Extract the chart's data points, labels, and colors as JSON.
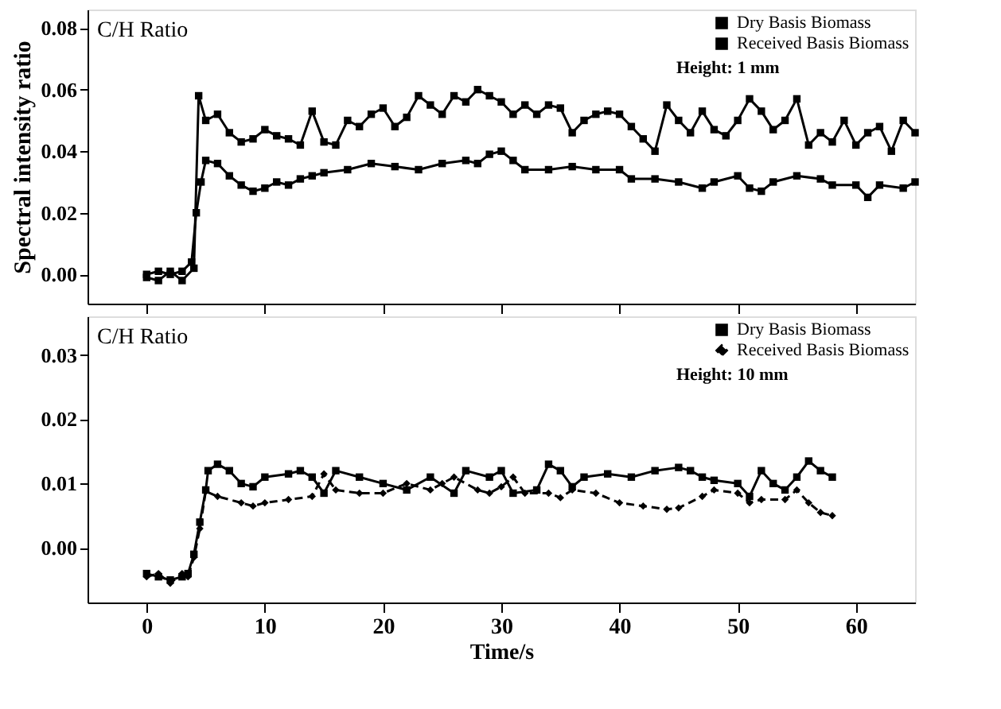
{
  "chart_data": [
    {
      "type": "line",
      "title": "C/H Ratio",
      "ylabel": "Spectral intensity ratio",
      "annotations": [
        "Height: 1 mm"
      ],
      "xlim": [
        -5,
        65
      ],
      "xticks": [
        0,
        10,
        20,
        30,
        40,
        50,
        60
      ],
      "ylim": [
        -0.0095,
        0.086
      ],
      "yticks": [
        {
          "value": 0,
          "label": "0.00"
        },
        0.02,
        0.04,
        0.06,
        0.08
      ],
      "tick_labels": "y",
      "legend": "top right",
      "grid": false,
      "series": [
        {
          "name": "Dry Basis Biomass",
          "color": "#000000",
          "marker": "square",
          "line_style": "solid",
          "x": [
            0,
            1,
            2,
            3,
            3.8,
            4.2,
            4.6,
            5,
            6,
            7,
            8,
            9,
            10,
            11,
            12,
            13,
            14,
            15,
            17,
            19,
            21,
            23,
            25,
            27,
            28,
            29,
            30,
            31,
            32,
            34,
            36,
            38,
            40,
            41,
            43,
            45,
            47,
            48,
            50,
            51,
            52,
            53,
            55,
            57,
            58,
            60,
            61,
            62,
            64,
            65
          ],
          "values": [
            0.0,
            0.001,
            0.0,
            0.001,
            0.004,
            0.02,
            0.03,
            0.037,
            0.036,
            0.032,
            0.029,
            0.027,
            0.028,
            0.03,
            0.029,
            0.031,
            0.032,
            0.033,
            0.034,
            0.036,
            0.035,
            0.034,
            0.036,
            0.037,
            0.036,
            0.039,
            0.04,
            0.037,
            0.034,
            0.034,
            0.035,
            0.034,
            0.034,
            0.031,
            0.031,
            0.03,
            0.028,
            0.03,
            0.032,
            0.028,
            0.027,
            0.03,
            0.032,
            0.031,
            0.029,
            0.029,
            0.025,
            0.029,
            0.028,
            0.03
          ]
        },
        {
          "name": "Received Basis Biomass",
          "color": "#000000",
          "marker": "square",
          "line_style": "solid",
          "x": [
            0,
            1,
            2,
            3,
            4,
            4.4,
            5,
            6,
            7,
            8,
            9,
            10,
            11,
            12,
            13,
            14,
            15,
            16,
            17,
            18,
            19,
            20,
            21,
            22,
            23,
            24,
            25,
            26,
            27,
            28,
            29,
            30,
            31,
            32,
            33,
            34,
            35,
            36,
            37,
            38,
            39,
            40,
            41,
            42,
            43,
            44,
            45,
            46,
            47,
            48,
            49,
            50,
            51,
            52,
            53,
            54,
            55,
            56,
            57,
            58,
            59,
            60,
            61,
            62,
            63,
            64,
            65
          ],
          "values": [
            -0.001,
            -0.002,
            0.001,
            -0.002,
            0.002,
            0.058,
            0.05,
            0.052,
            0.046,
            0.043,
            0.044,
            0.047,
            0.045,
            0.044,
            0.042,
            0.053,
            0.043,
            0.042,
            0.05,
            0.048,
            0.052,
            0.054,
            0.048,
            0.051,
            0.058,
            0.055,
            0.052,
            0.058,
            0.056,
            0.06,
            0.058,
            0.056,
            0.052,
            0.055,
            0.052,
            0.055,
            0.054,
            0.046,
            0.05,
            0.052,
            0.053,
            0.052,
            0.048,
            0.044,
            0.04,
            0.055,
            0.05,
            0.046,
            0.053,
            0.047,
            0.045,
            0.05,
            0.057,
            0.053,
            0.047,
            0.05,
            0.057,
            0.042,
            0.046,
            0.043,
            0.05,
            0.042,
            0.046,
            0.048,
            0.04,
            0.05,
            0.046
          ]
        }
      ]
    },
    {
      "type": "line",
      "title": "C/H Ratio",
      "xlabel": "Time/s",
      "annotations": [
        "Height: 10 mm"
      ],
      "xlim": [
        -5,
        65
      ],
      "xticks": [
        0,
        10,
        20,
        30,
        40,
        50,
        60
      ],
      "ylim": [
        -0.0085,
        0.036
      ],
      "yticks": [
        {
          "value": 0,
          "label": "0.00"
        },
        0.01,
        0.02,
        0.03
      ],
      "legend": "top right",
      "grid": false,
      "series": [
        {
          "name": "Dry Basis Biomass",
          "color": "#000000",
          "marker": "square",
          "line_style": "solid",
          "x": [
            0,
            1,
            2,
            3,
            3.5,
            4,
            4.5,
            5,
            5.2,
            6,
            7,
            8,
            9,
            10,
            12,
            13,
            14,
            15,
            16,
            18,
            20,
            22,
            24,
            26,
            27,
            29,
            30,
            31,
            33,
            34,
            35,
            36,
            37,
            39,
            41,
            43,
            45,
            46,
            47,
            48,
            50,
            51,
            52,
            53,
            54,
            55,
            56,
            57,
            58
          ],
          "values": [
            -0.004,
            -0.0045,
            -0.005,
            -0.0045,
            -0.004,
            -0.001,
            0.004,
            0.009,
            0.012,
            0.013,
            0.012,
            0.01,
            0.0095,
            0.011,
            0.0115,
            0.012,
            0.011,
            0.0085,
            0.012,
            0.011,
            0.01,
            0.009,
            0.011,
            0.0085,
            0.012,
            0.011,
            0.012,
            0.0085,
            0.009,
            0.013,
            0.012,
            0.0095,
            0.011,
            0.0115,
            0.011,
            0.012,
            0.0125,
            0.012,
            0.011,
            0.0105,
            0.01,
            0.008,
            0.012,
            0.01,
            0.009,
            0.011,
            0.0135,
            0.012,
            0.011
          ]
        },
        {
          "name": "Received Basis Biomass",
          "color": "#000000",
          "marker": "diamond",
          "line_style": "dashed",
          "x": [
            0,
            1,
            2,
            3,
            3.5,
            4,
            4.5,
            5,
            6,
            8,
            9,
            10,
            12,
            14,
            15,
            16,
            18,
            20,
            22,
            24,
            25,
            26,
            28,
            29,
            30,
            31,
            32,
            34,
            35,
            36,
            38,
            40,
            42,
            44,
            45,
            47,
            48,
            50,
            51,
            52,
            54,
            55,
            56,
            57,
            58
          ],
          "values": [
            -0.0045,
            -0.004,
            -0.0055,
            -0.004,
            -0.0045,
            -0.0015,
            0.003,
            0.0088,
            0.008,
            0.007,
            0.0065,
            0.007,
            0.0075,
            0.008,
            0.0115,
            0.009,
            0.0085,
            0.0085,
            0.01,
            0.009,
            0.01,
            0.011,
            0.009,
            0.0085,
            0.0095,
            0.011,
            0.0085,
            0.0085,
            0.0078,
            0.009,
            0.0085,
            0.007,
            0.0065,
            0.006,
            0.0062,
            0.008,
            0.009,
            0.0085,
            0.007,
            0.0075,
            0.0075,
            0.009,
            0.007,
            0.0055,
            0.005
          ]
        }
      ]
    }
  ]
}
